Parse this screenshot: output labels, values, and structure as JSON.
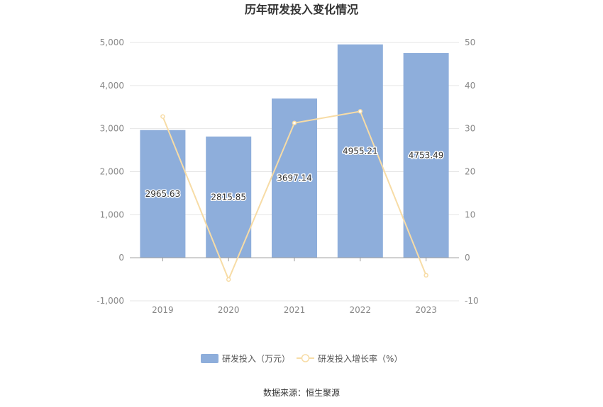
{
  "chart_data": {
    "type": "bar",
    "title": "历年研发投入变化情况",
    "categories": [
      "2019",
      "2020",
      "2021",
      "2022",
      "2023"
    ],
    "series": [
      {
        "name": "研发投入（万元）",
        "type": "bar",
        "axis": "left",
        "color": "#8eaedb",
        "values": [
          2965.63,
          2815.85,
          3697.14,
          4955.21,
          4753.49
        ],
        "labels": [
          "2965.63",
          "2815.85",
          "3697.14",
          "4955.21",
          "4753.49"
        ]
      },
      {
        "name": "研发投入增长率（%）",
        "type": "line",
        "axis": "right",
        "color": "#f7dca6",
        "values": [
          32.8,
          -5.05,
          31.3,
          34.0,
          -4.07
        ]
      }
    ],
    "y_left": {
      "min": -1000,
      "max": 5000,
      "ticks": [
        "-1,000",
        "0",
        "1,000",
        "2,000",
        "3,000",
        "4,000",
        "5,000"
      ]
    },
    "y_right": {
      "min": -10,
      "max": 50,
      "ticks": [
        "-10",
        "0",
        "10",
        "20",
        "30",
        "40",
        "50"
      ]
    },
    "grid": true,
    "legend": "bottom"
  },
  "source": "数据来源：恒生聚源"
}
